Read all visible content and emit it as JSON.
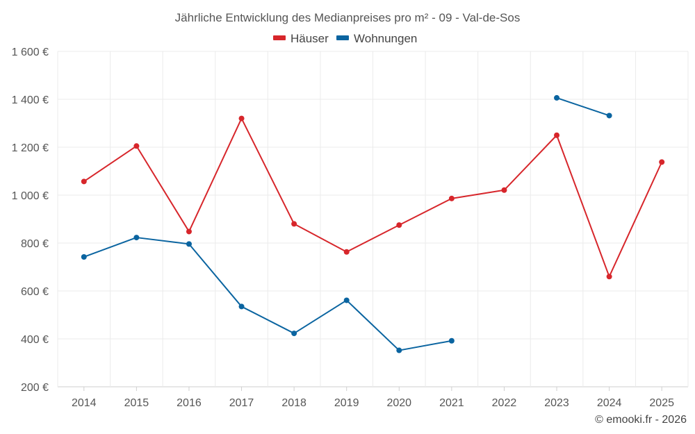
{
  "chart_data": {
    "type": "line",
    "title": "Jährliche Entwicklung des Medianpreises pro m² - 09 - Val-de-Sos",
    "categories": [
      "2014",
      "2015",
      "2016",
      "2017",
      "2018",
      "2019",
      "2020",
      "2021",
      "2022",
      "2023",
      "2024",
      "2025"
    ],
    "ylim": [
      200,
      1600
    ],
    "yticks": [
      200,
      400,
      600,
      800,
      1000,
      1200,
      1400,
      1600
    ],
    "ytick_labels": [
      "200 €",
      "400 €",
      "600 €",
      "800 €",
      "1 000 €",
      "1 200 €",
      "1 400 €",
      "1 600 €"
    ],
    "grid": true,
    "legend_position": "top-center",
    "series": [
      {
        "name": "Häuser",
        "color": "#d7262b",
        "values": [
          1057,
          1205,
          848,
          1320,
          880,
          763,
          875,
          986,
          1021,
          1250,
          660,
          1138
        ]
      },
      {
        "name": "Wohnungen",
        "color": "#0a64a0",
        "values": [
          742,
          823,
          796,
          535,
          423,
          561,
          352,
          392,
          null,
          1406,
          1332,
          null
        ]
      }
    ],
    "credit": "© emooki.fr - 2026"
  }
}
